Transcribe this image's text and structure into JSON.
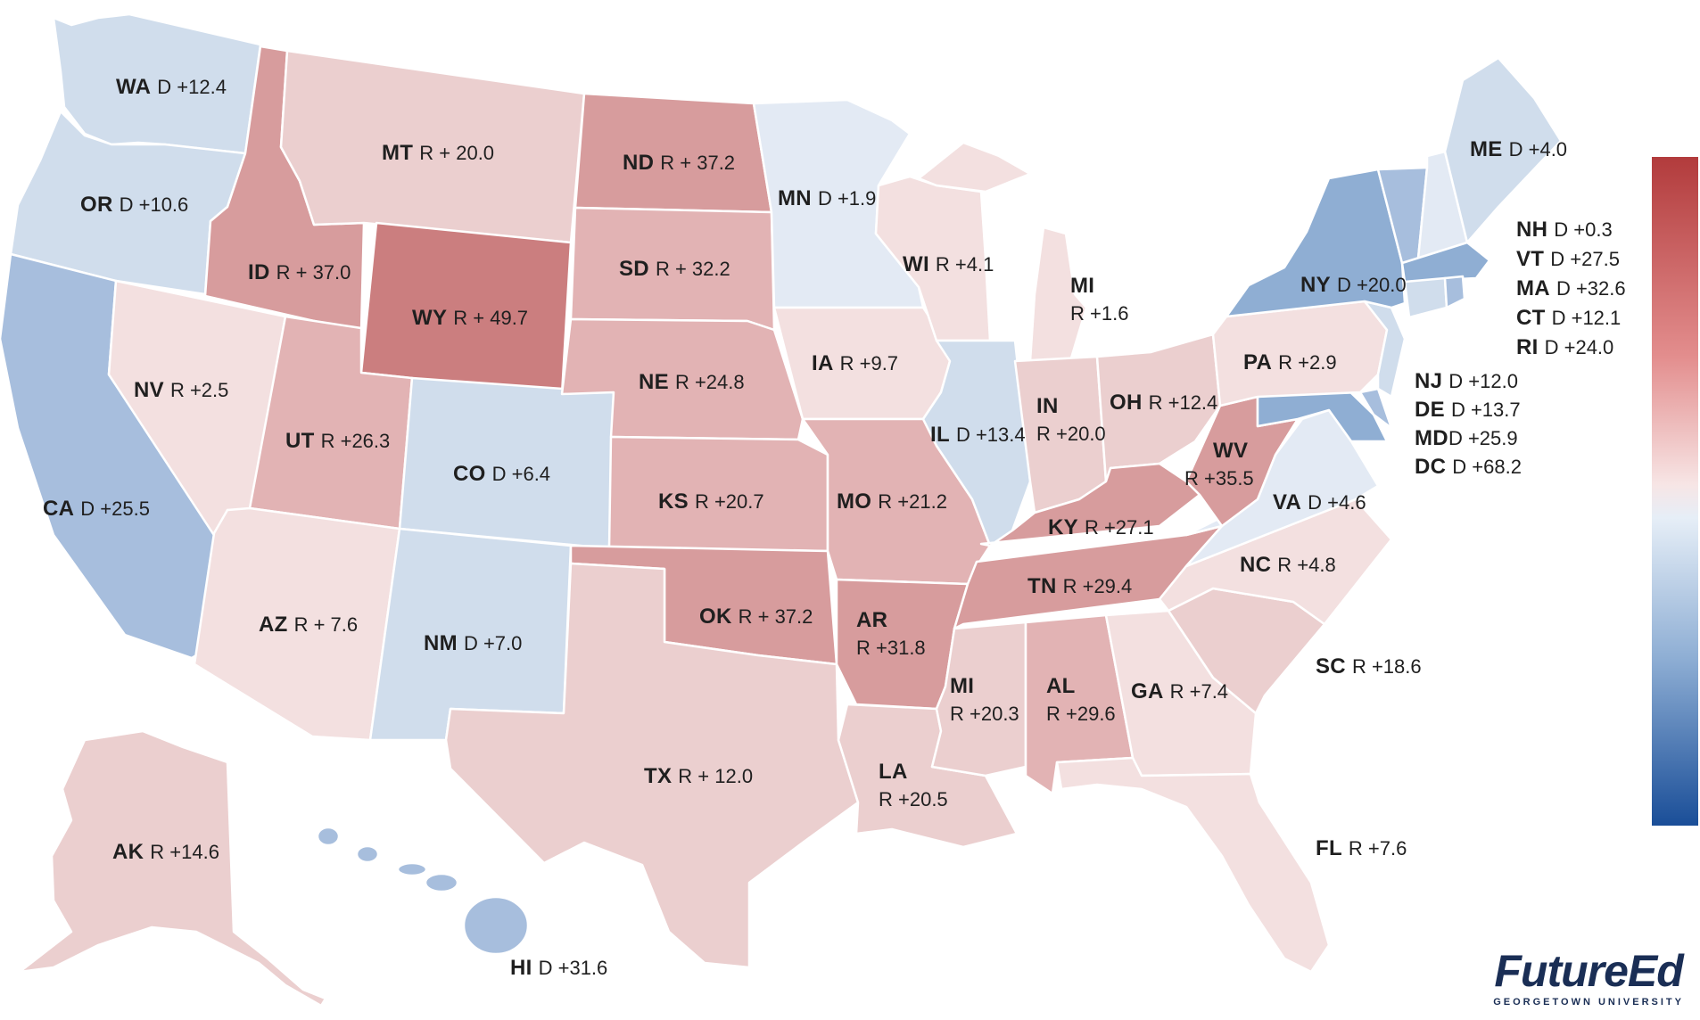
{
  "colors": {
    "d_strong": "#8faed3",
    "d_mid": "#a7bedd",
    "d_light": "#d0ddec",
    "d_faint": "#e3eaf4",
    "r_faint": "#f3e0e0",
    "r_light": "#ebcfcf",
    "r_mid": "#e2b3b4",
    "r_strong": "#d79c9d",
    "r_max": "#cb7e7f"
  },
  "states": [
    {
      "abbr": "WA",
      "value": "D +12.4"
    },
    {
      "abbr": "OR",
      "value": "D +10.6"
    },
    {
      "abbr": "CA",
      "value": "D +25.5"
    },
    {
      "abbr": "NV",
      "value": "R +2.5"
    },
    {
      "abbr": "ID",
      "value": "R + 37.0"
    },
    {
      "abbr": "MT",
      "value": "R + 20.0"
    },
    {
      "abbr": "WY",
      "value": "R + 49.7"
    },
    {
      "abbr": "UT",
      "value": "R +26.3"
    },
    {
      "abbr": "AZ",
      "value": "R + 7.6"
    },
    {
      "abbr": "CO",
      "value": "D +6.4"
    },
    {
      "abbr": "NM",
      "value": "D +7.0"
    },
    {
      "abbr": "ND",
      "value": "R + 37.2"
    },
    {
      "abbr": "SD",
      "value": "R + 32.2"
    },
    {
      "abbr": "NE",
      "value": "R +24.8"
    },
    {
      "abbr": "KS",
      "value": "R +20.7"
    },
    {
      "abbr": "OK",
      "value": "R + 37.2"
    },
    {
      "abbr": "TX",
      "value": "R + 12.0"
    },
    {
      "abbr": "MN",
      "value": "D +1.9"
    },
    {
      "abbr": "IA",
      "value": "R +9.7"
    },
    {
      "abbr": "MO",
      "value": "R +21.2"
    },
    {
      "abbr": "AR",
      "value": "R +31.8"
    },
    {
      "abbr": "LA",
      "value": "R +20.5"
    },
    {
      "abbr": "WI",
      "value": "R +4.1"
    },
    {
      "abbr": "IL",
      "value": "D +13.4"
    },
    {
      "abbr": "MI",
      "value": "R +1.6"
    },
    {
      "abbr": "IN",
      "value": "R +20.0"
    },
    {
      "abbr": "OH",
      "value": "R +12.4"
    },
    {
      "abbr": "KY",
      "value": "R +27.1"
    },
    {
      "abbr": "TN",
      "value": "R +29.4"
    },
    {
      "abbr": "MI",
      "value": "R +20.3"
    },
    {
      "abbr": "AL",
      "value": "R +29.6"
    },
    {
      "abbr": "GA",
      "value": "R +7.4"
    },
    {
      "abbr": "FL",
      "value": "R +7.6"
    },
    {
      "abbr": "SC",
      "value": "R +18.6"
    },
    {
      "abbr": "NC",
      "value": "R +4.8"
    },
    {
      "abbr": "VA",
      "value": "D +4.6"
    },
    {
      "abbr": "WV",
      "value": "R +35.5"
    },
    {
      "abbr": "PA",
      "value": "R +2.9"
    },
    {
      "abbr": "NY",
      "value": "D +20.0"
    },
    {
      "abbr": "ME",
      "value": "D +4.0"
    },
    {
      "abbr": "AK",
      "value": "R +14.6"
    },
    {
      "abbr": "HI",
      "value": "D +31.6"
    }
  ],
  "northeast_list": [
    {
      "abbr": "NH",
      "value": "D +0.3"
    },
    {
      "abbr": "VT",
      "value": "D +27.5"
    },
    {
      "abbr": "MA",
      "value": "D +32.6"
    },
    {
      "abbr": "CT",
      "value": "D +12.1"
    },
    {
      "abbr": "RI",
      "value": "D +24.0"
    },
    {
      "abbr": "NJ",
      "value": "D +12.0"
    },
    {
      "abbr": "DE",
      "value": "D +13.7"
    },
    {
      "abbr": "MD",
      "value": "D +25.9"
    },
    {
      "abbr": "DC",
      "value": "D +68.2"
    }
  ],
  "logo": {
    "name": "FutureEd",
    "sub": "GEORGETOWN UNIVERSITY"
  }
}
